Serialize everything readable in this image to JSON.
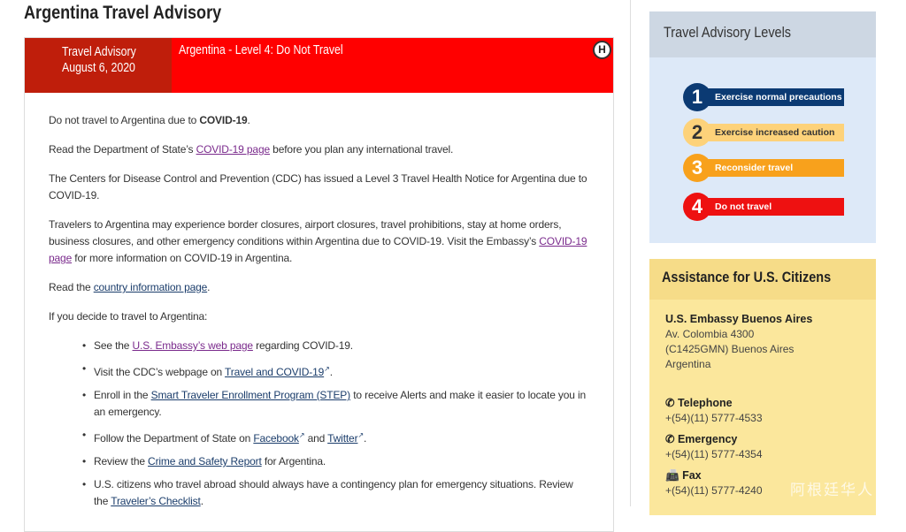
{
  "page_title": "Argentina Travel Advisory",
  "banner": {
    "label": "Travel Advisory",
    "date": "August 6, 2020",
    "headline": "Argentina - Level 4: Do Not Travel",
    "h_icon": "H"
  },
  "paragraphs": [
    [
      {
        "t": "Do not travel to Argentina due to "
      },
      {
        "t": "COVID-19",
        "bold": true
      },
      {
        "t": "."
      }
    ],
    [
      {
        "t": "Read the Department of State’s "
      },
      {
        "t": "COVID-19 page",
        "link": true,
        "visited": true
      },
      {
        "t": " before you plan any international travel."
      }
    ],
    [
      {
        "t": "The Centers for Disease Control and Prevention (CDC) has issued a Level 3 Travel Health Notice for Argentina due to COVID-19."
      }
    ],
    [
      {
        "t": "Travelers to Argentina may experience border closures, airport closures, travel prohibitions, stay at home orders, business closures, and other emergency conditions within Argentina due to COVID-19. Visit the Embassy’s "
      },
      {
        "t": "COVID-19 page",
        "link": true,
        "visited": true
      },
      {
        "t": " for more information on COVID-19 in Argentina."
      }
    ],
    [
      {
        "t": "Read the "
      },
      {
        "t": "country information page",
        "link": true
      },
      {
        "t": "."
      }
    ],
    [
      {
        "t": "If you decide to travel to Argentina:"
      }
    ]
  ],
  "list": [
    [
      {
        "t": "See the "
      },
      {
        "t": "U.S. Embassy’s web page",
        "link": true,
        "visited": true
      },
      {
        "t": " regarding COVID-19."
      }
    ],
    [
      {
        "t": "Visit the CDC’s webpage on "
      },
      {
        "t": "Travel and COVID-19",
        "link": true,
        "ext": true
      },
      {
        "t": "."
      }
    ],
    [
      {
        "t": "Enroll in the "
      },
      {
        "t": "Smart Traveler Enrollment Program (STEP)",
        "link": true
      },
      {
        "t": " to receive Alerts and make it easier to locate you in an emergency."
      }
    ],
    [
      {
        "t": "Follow the Department of State on "
      },
      {
        "t": "Facebook",
        "link": true,
        "ext": true
      },
      {
        "t": " and "
      },
      {
        "t": "Twitter",
        "link": true,
        "ext": true
      },
      {
        "t": "."
      }
    ],
    [
      {
        "t": "Review the "
      },
      {
        "t": "Crime and Safety Report",
        "link": true
      },
      {
        "t": " for Argentina."
      }
    ],
    [
      {
        "t": "U.S. citizens who travel abroad should always have a contingency plan for emergency situations. Review the "
      },
      {
        "t": "Traveler’s Checklist",
        "link": true
      },
      {
        "t": "."
      }
    ]
  ],
  "levels": {
    "title": "Travel Advisory Levels",
    "items": [
      {
        "num": "1",
        "label": "Exercise normal precautions",
        "color": "#0b3a73",
        "text": "#ffffff"
      },
      {
        "num": "2",
        "label": "Exercise increased caution",
        "color": "#fdd27a",
        "text": "#333333"
      },
      {
        "num": "3",
        "label": "Reconsider travel",
        "color": "#f8a11c",
        "text": "#ffffff"
      },
      {
        "num": "4",
        "label": "Do not travel",
        "color": "#ee1111",
        "text": "#ffffff"
      }
    ]
  },
  "assistance": {
    "title": "Assistance for U.S. Citizens",
    "embassy": "U.S. Embassy Buenos Aires",
    "address": [
      "Av. Colombia 4300",
      "(C1425GMN) Buenos Aires",
      "Argentina"
    ],
    "contacts": [
      {
        "label": "Telephone",
        "icon": "phone-icon",
        "value": "+(54)(11) 5777-4533"
      },
      {
        "label": "Emergency",
        "icon": "phone-icon",
        "value": "+(54)(11) 5777-4354"
      },
      {
        "label": "Fax",
        "icon": "fax-icon",
        "value": "+(54)(11) 5777-4240"
      }
    ]
  },
  "watermark": "阿根廷华人"
}
